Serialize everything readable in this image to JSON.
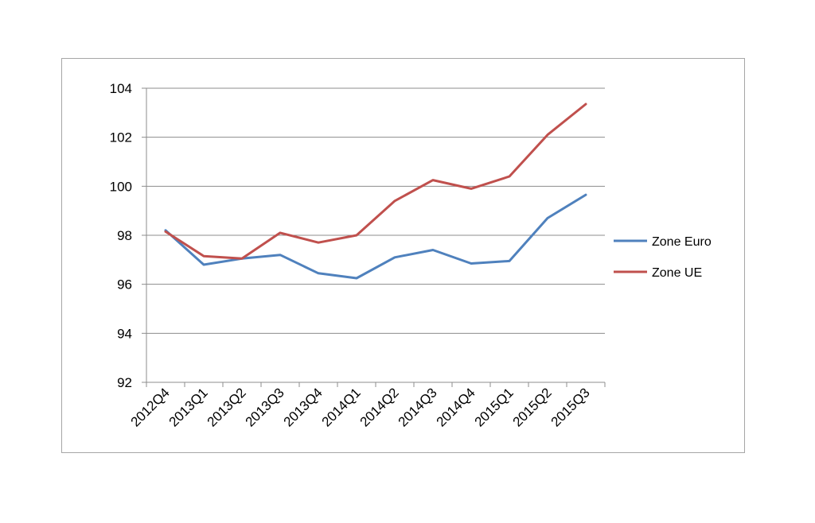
{
  "chart_data": {
    "type": "line",
    "title": "",
    "xlabel": "",
    "ylabel": "",
    "categories": [
      "2012Q4",
      "2013Q1",
      "2013Q2",
      "2013Q3",
      "2013Q4",
      "2014Q1",
      "2014Q2",
      "2014Q3",
      "2014Q4",
      "2015Q1",
      "2015Q2",
      "2015Q3"
    ],
    "ylim": [
      92,
      104
    ],
    "yticks": [
      92,
      94,
      96,
      98,
      100,
      102,
      104
    ],
    "grid": true,
    "legend_position": "right",
    "series": [
      {
        "name": "Zone Euro",
        "color": "#4f81bd",
        "values": [
          98.2,
          96.8,
          97.05,
          97.2,
          96.45,
          96.25,
          97.1,
          97.4,
          96.85,
          96.95,
          98.7,
          99.65
        ]
      },
      {
        "name": "Zone UE",
        "color": "#c0504d",
        "values": [
          98.15,
          97.15,
          97.05,
          98.1,
          97.7,
          98.0,
          99.4,
          100.25,
          99.9,
          100.4,
          102.1,
          103.35
        ]
      }
    ]
  }
}
